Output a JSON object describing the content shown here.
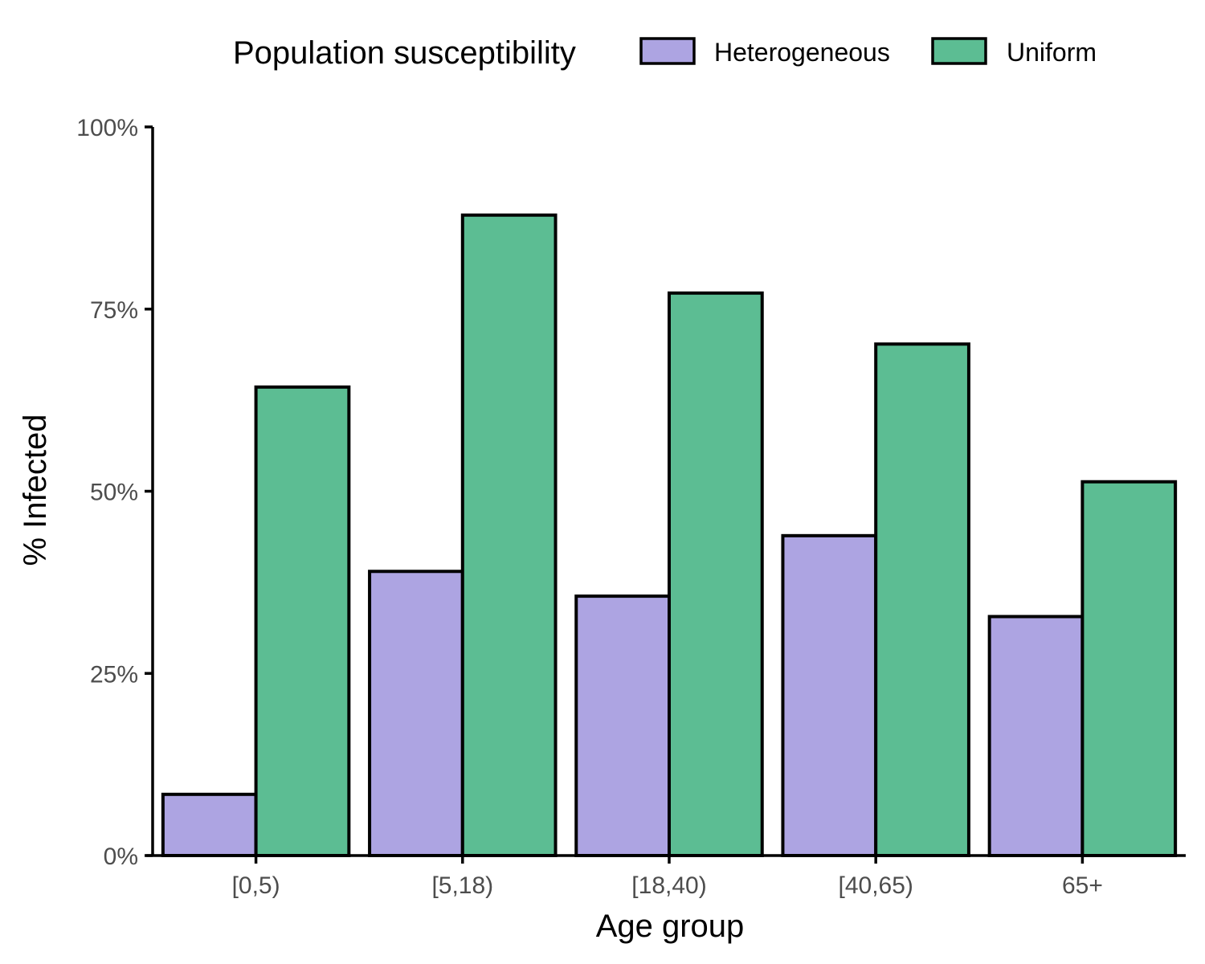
{
  "legend": {
    "title": "Population susceptibility",
    "placement": "top"
  },
  "chart_data": {
    "type": "bar",
    "title": "",
    "xlabel": "Age group",
    "ylabel": "% Infected",
    "ylim": [
      0,
      100
    ],
    "yticks": [
      "0%",
      "25%",
      "50%",
      "75%",
      "100%"
    ],
    "ytick_values": [
      0,
      25,
      50,
      75,
      100
    ],
    "categories": [
      "[0,5)",
      "[5,18)",
      "[18,40)",
      "[40,65)",
      "65+"
    ],
    "series": [
      {
        "name": "Heterogeneous",
        "color": "#ada4e2",
        "values": [
          8.4,
          39.0,
          35.6,
          43.9,
          32.8
        ]
      },
      {
        "name": "Uniform",
        "color": "#5cbd93",
        "values": [
          64.3,
          87.9,
          77.2,
          70.2,
          51.3
        ]
      }
    ],
    "grid": false
  }
}
